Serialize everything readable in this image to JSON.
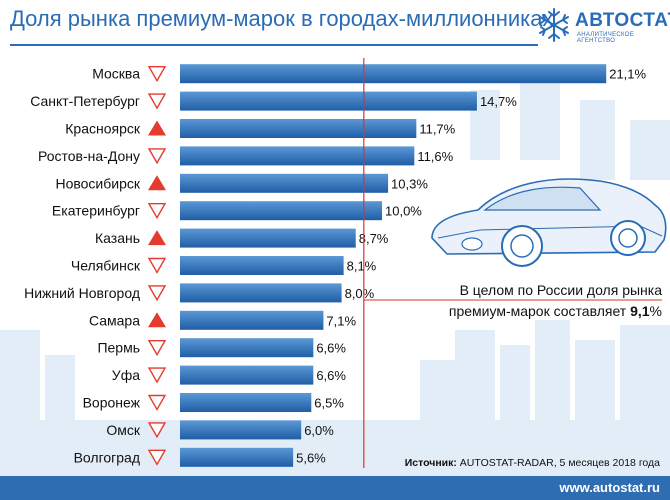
{
  "header": {
    "title": "Доля рынка премиум-марок в городах-миллионниках",
    "logo_name": "АВТОСТАТ",
    "logo_tagline": "АНАЛИТИЧЕСКОЕ АГЕНТСТВО"
  },
  "note": {
    "line1": "В целом по России доля рынка",
    "line2_prefix": "премиум-марок составляет ",
    "line2_value": "9,1",
    "line2_suffix": "%"
  },
  "source": {
    "label": "Источник:",
    "text": "AUTOSTAT-RADAR, 5 месяцев 2018 года"
  },
  "footer": {
    "url": "www.autostat.ru"
  },
  "colors": {
    "bar_top": "#5b98d6",
    "bar_bottom": "#1f5ea6",
    "title": "#2a6cb5",
    "reference_line": "#d9342b",
    "trend_up": "#e53b2e",
    "trend_down_outline": "#e53b2e"
  },
  "chart_data": {
    "type": "bar",
    "orientation": "horizontal",
    "title": "Доля рынка премиум-марок в городах-миллионниках",
    "unit": "%",
    "reference_value": 9.1,
    "categories": [
      "Москва",
      "Санкт-Петербург",
      "Красноярск",
      "Ростов-на-Дону",
      "Новосибирск",
      "Екатеринбург",
      "Казань",
      "Челябинск",
      "Нижний Новгород",
      "Самара",
      "Пермь",
      "Уфа",
      "Воронеж",
      "Омск",
      "Волгоград"
    ],
    "values": [
      21.1,
      14.7,
      11.7,
      11.6,
      10.3,
      10.0,
      8.7,
      8.1,
      8.0,
      7.1,
      6.6,
      6.6,
      6.5,
      6.0,
      5.6
    ],
    "value_labels": [
      "21,1%",
      "14,7%",
      "11,7%",
      "11,6%",
      "10,3%",
      "10,0%",
      "8,7%",
      "8,1%",
      "8,0%",
      "7,1%",
      "6,6%",
      "6,6%",
      "6,5%",
      "6,0%",
      "5,6%"
    ],
    "trend": [
      "down",
      "down",
      "up",
      "down",
      "up",
      "down",
      "up",
      "down",
      "down",
      "up",
      "down",
      "down",
      "down",
      "down",
      "down"
    ]
  }
}
